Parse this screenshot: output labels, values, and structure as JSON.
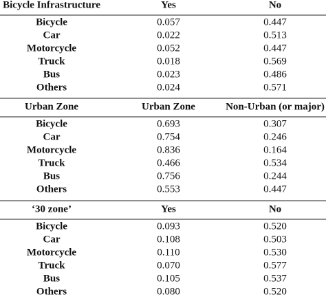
{
  "table": {
    "sections": [
      {
        "header": [
          "Bicycle Infrastructure",
          "Yes",
          "No"
        ],
        "rows": [
          [
            "Bicycle",
            "0.057",
            "0.447"
          ],
          [
            "Car",
            "0.022",
            "0.513"
          ],
          [
            "Motorcycle",
            "0.052",
            "0.447"
          ],
          [
            "Truck",
            "0.018",
            "0.569"
          ],
          [
            "Bus",
            "0.023",
            "0.486"
          ],
          [
            "Others",
            "0.024",
            "0.571"
          ]
        ]
      },
      {
        "header": [
          "Urban Zone",
          "Urban Zone",
          "Non-Urban (or major)"
        ],
        "rows": [
          [
            "Bicycle",
            "0.693",
            "0.307"
          ],
          [
            "Car",
            "0.754",
            "0.246"
          ],
          [
            "Motorcycle",
            "0.836",
            "0.164"
          ],
          [
            "Truck",
            "0.466",
            "0.534"
          ],
          [
            "Bus",
            "0.756",
            "0.244"
          ],
          [
            "Others",
            "0.553",
            "0.447"
          ]
        ]
      },
      {
        "header": [
          "‘30 zone’",
          "Yes",
          "No"
        ],
        "rows": [
          [
            "Bicycle",
            "0.093",
            "0.520"
          ],
          [
            "Car",
            "0.108",
            "0.503"
          ],
          [
            "Motorcycle",
            "0.110",
            "0.530"
          ],
          [
            "Truck",
            "0.070",
            "0.577"
          ],
          [
            "Bus",
            "0.105",
            "0.537"
          ],
          [
            "Others",
            "0.080",
            "0.520"
          ]
        ]
      }
    ]
  }
}
